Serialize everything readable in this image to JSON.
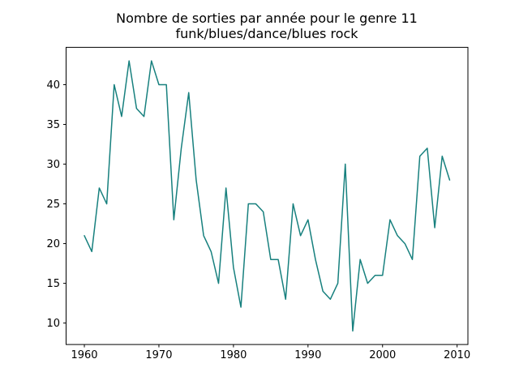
{
  "title": {
    "line1": "Nombre de sorties par année pour le genre 11",
    "line2": "funk/blues/dance/blues rock"
  },
  "chart_data": {
    "type": "line",
    "title": "Nombre de sorties par année pour le genre 11\nfunk/blues/dance/blues rock",
    "xlabel": "",
    "ylabel": "",
    "x": [
      1960,
      1961,
      1962,
      1963,
      1964,
      1965,
      1966,
      1967,
      1968,
      1969,
      1970,
      1971,
      1972,
      1973,
      1974,
      1975,
      1976,
      1977,
      1978,
      1979,
      1980,
      1981,
      1982,
      1983,
      1984,
      1985,
      1986,
      1987,
      1988,
      1989,
      1990,
      1991,
      1992,
      1993,
      1994,
      1995,
      1996,
      1997,
      1998,
      1999,
      2000,
      2001,
      2002,
      2003,
      2004,
      2005,
      2006,
      2007,
      2008,
      2009
    ],
    "series": [
      {
        "name": "sorties",
        "values": [
          21,
          19,
          27,
          25,
          40,
          36,
          43,
          37,
          36,
          43,
          40,
          40,
          23,
          32,
          39,
          28,
          21,
          19,
          15,
          27,
          17,
          12,
          25,
          25,
          24,
          18,
          18,
          13,
          25,
          21,
          23,
          18,
          14,
          13,
          15,
          30,
          9,
          18,
          15,
          16,
          16,
          23,
          21,
          20,
          18,
          31,
          32,
          22,
          31,
          28
        ]
      }
    ],
    "xlim": [
      1957.55,
      2011.45
    ],
    "ylim": [
      7.3,
      44.7
    ],
    "xticks": [
      1960,
      1970,
      1980,
      1990,
      2000,
      2010
    ],
    "yticks": [
      10,
      15,
      20,
      25,
      30,
      35,
      40
    ],
    "grid": false,
    "legend_position": "none",
    "line_color": "#17807e",
    "line_width": 1.5,
    "axis_color": "#000000",
    "background_color": "#ffffff",
    "tick_label_fontsize_px": 13
  }
}
